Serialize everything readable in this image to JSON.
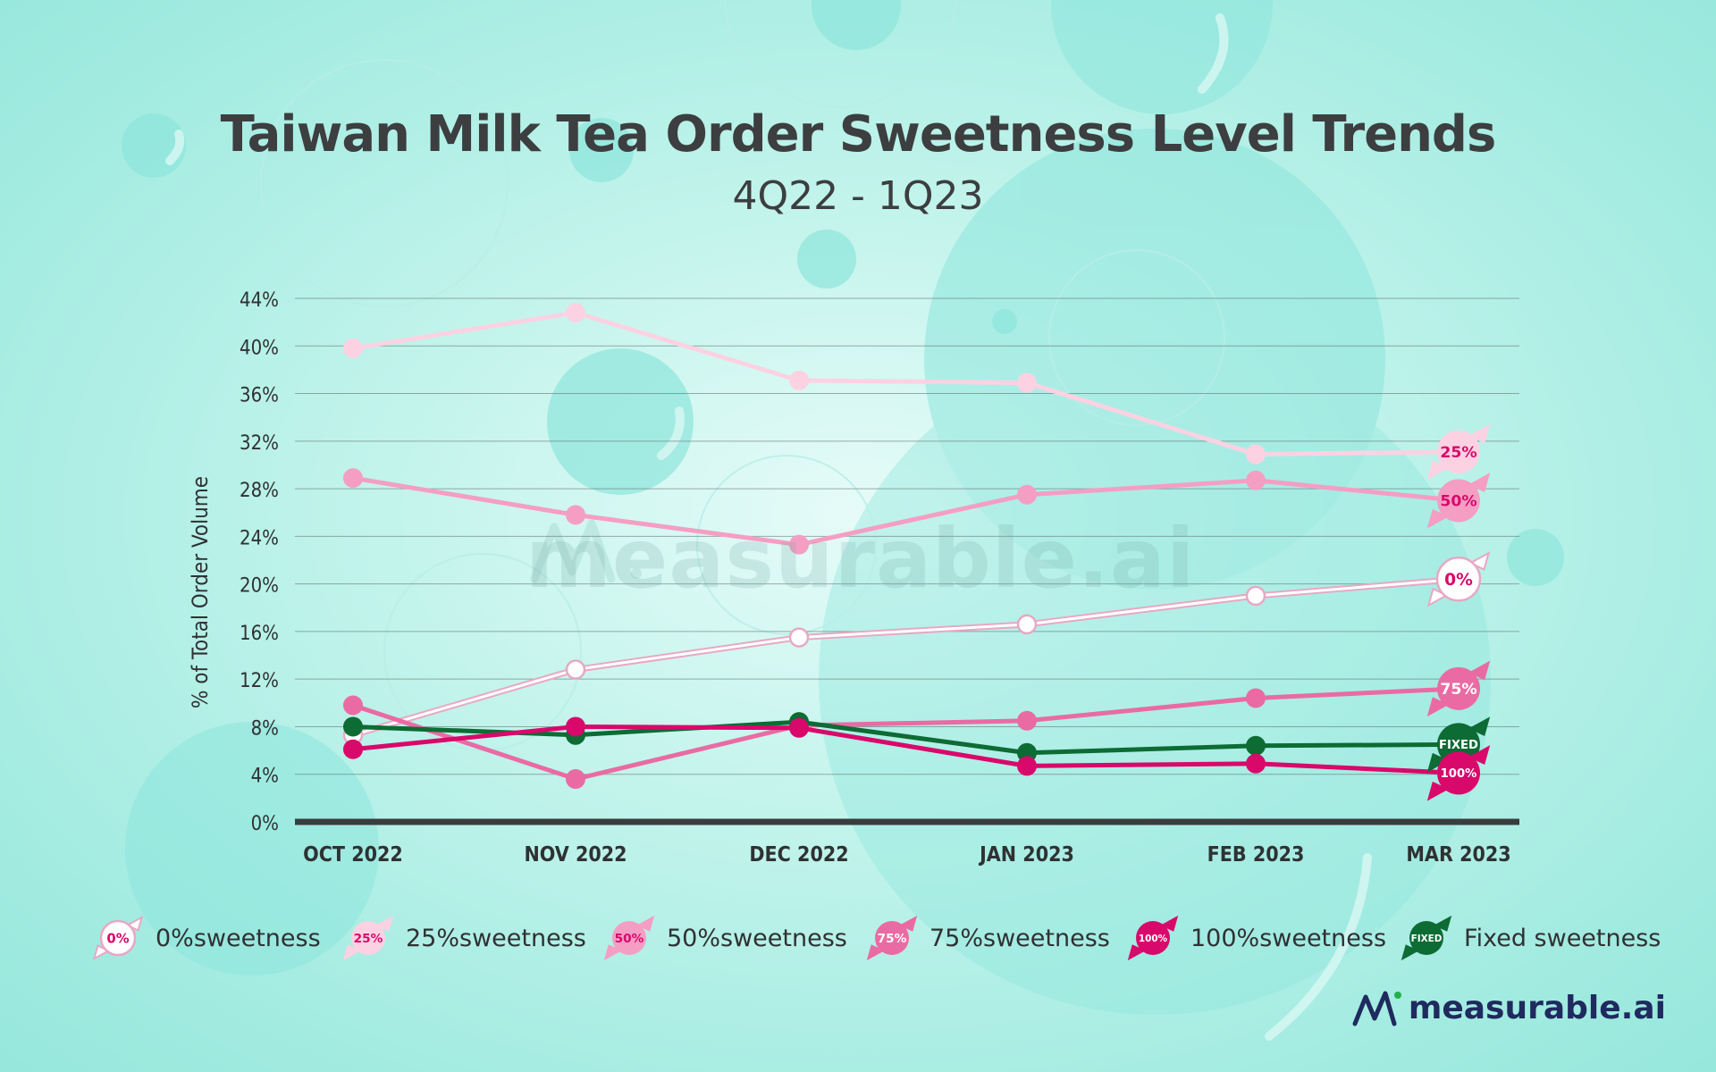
{
  "page": {
    "title": "Taiwan Milk Tea Order Sweetness Level Trends",
    "subtitle": "4Q22 - 1Q23",
    "watermark": "measurable.ai",
    "brand": "measurable.ai"
  },
  "chart_data": {
    "type": "line",
    "title": "Taiwan Milk Tea Order Sweetness Level Trends",
    "subtitle": "4Q22 - 1Q23",
    "xlabel": "",
    "ylabel": "% of Total Order Volume",
    "categories": [
      "OCT 2022",
      "NOV 2022",
      "DEC 2022",
      "JAN 2023",
      "FEB 2023",
      "MAR 2023"
    ],
    "ylim": [
      0,
      44
    ],
    "yticks": [
      0,
      4,
      8,
      12,
      16,
      20,
      24,
      28,
      32,
      36,
      40,
      44
    ],
    "ytick_labels": [
      "0%",
      "4%",
      "8%",
      "12%",
      "16%",
      "20%",
      "24%",
      "28%",
      "32%",
      "36%",
      "40%",
      "44%"
    ],
    "grid": true,
    "legend_position": "bottom",
    "series": [
      {
        "name": "0%sweetness",
        "badge": "0%",
        "color": "#ffffff",
        "stroke": "#e8a8c4",
        "values": [
          7.3,
          12.8,
          15.5,
          16.6,
          19.0,
          20.4
        ]
      },
      {
        "name": "25%sweetness",
        "badge": "25%",
        "color": "#fcd2e2",
        "values": [
          39.8,
          42.8,
          37.1,
          36.9,
          30.9,
          31.1
        ]
      },
      {
        "name": "50%sweetness",
        "badge": "50%",
        "color": "#f59ec4",
        "values": [
          28.9,
          25.8,
          23.3,
          27.5,
          28.7,
          27.0
        ]
      },
      {
        "name": "75%sweetness",
        "badge": "75%",
        "color": "#ea6ba3",
        "values": [
          9.8,
          3.6,
          8.1,
          8.5,
          10.4,
          11.2
        ]
      },
      {
        "name": "100%sweetness",
        "badge": "100%",
        "color": "#d9086b",
        "values": [
          6.1,
          8.0,
          7.9,
          4.7,
          4.9,
          4.1
        ]
      },
      {
        "name": "Fixed sweetness",
        "badge": "FIXED",
        "color": "#0d6b34",
        "values": [
          8.0,
          7.3,
          8.4,
          5.8,
          6.4,
          6.5
        ]
      }
    ]
  }
}
